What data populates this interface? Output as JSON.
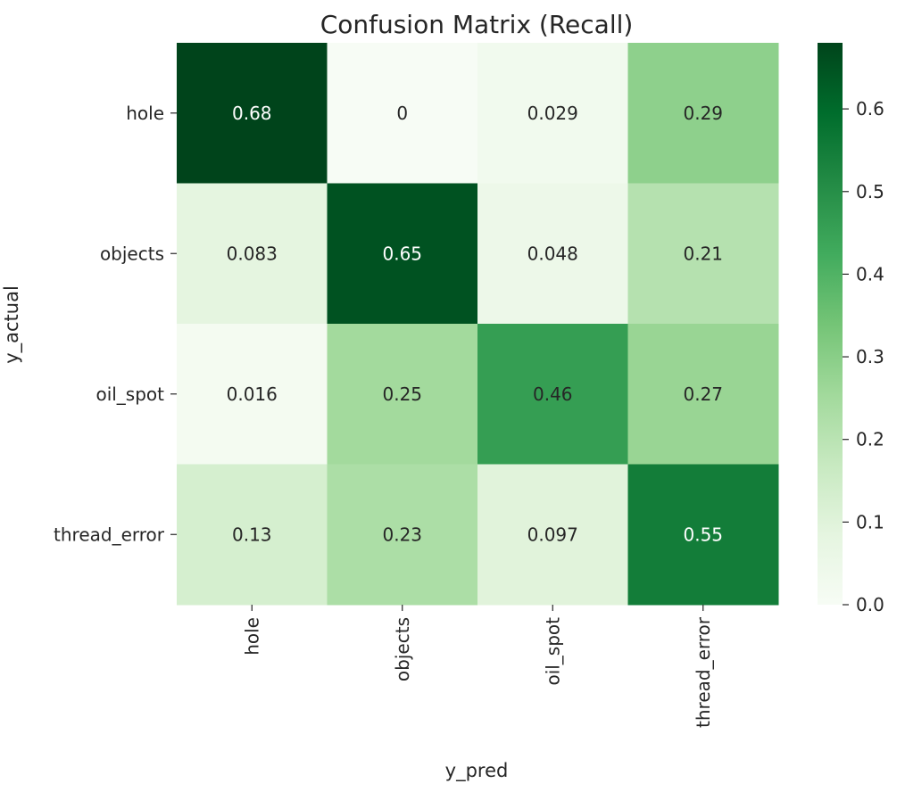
{
  "chart_data": {
    "type": "heatmap",
    "title": "Confusion Matrix (Recall)",
    "xlabel": "y_pred",
    "ylabel": "y_actual",
    "x_categories": [
      "hole",
      "objects",
      "oil_spot",
      "thread_error"
    ],
    "y_categories": [
      "hole",
      "objects",
      "oil_spot",
      "thread_error"
    ],
    "values": [
      [
        0.68,
        0,
        0.029,
        0.29
      ],
      [
        0.083,
        0.65,
        0.048,
        0.21
      ],
      [
        0.016,
        0.25,
        0.46,
        0.27
      ],
      [
        0.13,
        0.23,
        0.097,
        0.55
      ]
    ],
    "labels": [
      [
        "0.68",
        "0",
        "0.029",
        "0.29"
      ],
      [
        "0.083",
        "0.65",
        "0.048",
        "0.21"
      ],
      [
        "0.016",
        "0.25",
        "0.46",
        "0.27"
      ],
      [
        "0.13",
        "0.23",
        "0.097",
        "0.55"
      ]
    ],
    "colormap": "Greens",
    "colorbar": {
      "range": [
        0.0,
        0.68
      ],
      "ticks": [
        0.0,
        0.1,
        0.2,
        0.3,
        0.4,
        0.5,
        0.6
      ],
      "tick_labels": [
        "0.0",
        "0.1",
        "0.2",
        "0.3",
        "0.4",
        "0.5",
        "0.6"
      ]
    }
  }
}
